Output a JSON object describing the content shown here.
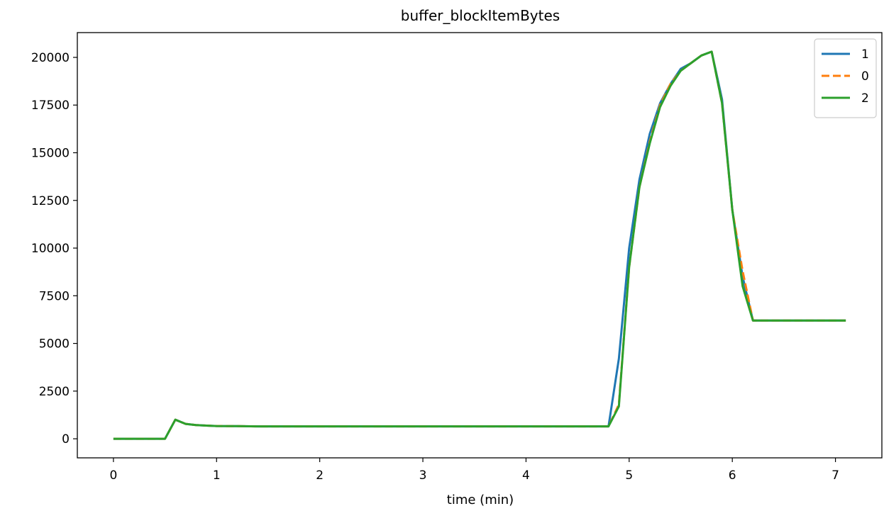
{
  "chart_data": {
    "type": "line",
    "title": "buffer_blockItemBytes",
    "xlabel": "time (min)",
    "ylabel": "",
    "xlim": [
      -0.35,
      7.45
    ],
    "ylim": [
      -1000,
      21300
    ],
    "xticks": [
      0,
      1,
      2,
      3,
      4,
      5,
      6,
      7
    ],
    "yticks": [
      0,
      2500,
      5000,
      7500,
      10000,
      12500,
      15000,
      17500,
      20000
    ],
    "grid": false,
    "legend_position": "top-right",
    "series": [
      {
        "name": "1",
        "color": "#1f77b4",
        "dash": "solid",
        "x": [
          0,
          0.1,
          0.2,
          0.3,
          0.4,
          0.5,
          0.6,
          0.7,
          0.8,
          0.9,
          1.0,
          1.2,
          1.4,
          1.6,
          1.8,
          2.0,
          2.2,
          2.4,
          2.6,
          2.8,
          3.0,
          3.2,
          3.4,
          3.6,
          3.8,
          4.0,
          4.2,
          4.4,
          4.6,
          4.8,
          4.9,
          5.0,
          5.1,
          5.2,
          5.3,
          5.4,
          5.5,
          5.6,
          5.7,
          5.8,
          5.9,
          6.0,
          6.1,
          6.2,
          6.3,
          6.5,
          6.7,
          6.9,
          7.1
        ],
        "y": [
          0,
          0,
          0,
          0,
          0,
          0,
          1000,
          780,
          720,
          690,
          670,
          660,
          650,
          650,
          650,
          650,
          650,
          650,
          650,
          650,
          650,
          650,
          650,
          650,
          650,
          650,
          650,
          650,
          650,
          650,
          4200,
          10000,
          13600,
          16000,
          17600,
          18600,
          19400,
          19700,
          20100,
          20300,
          17800,
          12000,
          8500,
          6200,
          6200,
          6200,
          6200,
          6200,
          6200
        ]
      },
      {
        "name": "0",
        "color": "#ff7f0e",
        "dash": "dashed",
        "x": [
          0,
          0.1,
          0.2,
          0.3,
          0.4,
          0.5,
          0.6,
          0.7,
          0.8,
          0.9,
          1.0,
          1.2,
          1.4,
          1.6,
          1.8,
          2.0,
          2.2,
          2.4,
          2.6,
          2.8,
          3.0,
          3.2,
          3.4,
          3.6,
          3.8,
          4.0,
          4.2,
          4.4,
          4.6,
          4.8,
          4.9,
          5.0,
          5.1,
          5.2,
          5.3,
          5.4,
          5.5,
          5.6,
          5.7,
          5.8,
          5.9,
          6.0,
          6.1,
          6.2,
          6.3,
          6.5,
          6.7,
          6.9,
          7.1
        ],
        "y": [
          0,
          0,
          0,
          0,
          0,
          0,
          1000,
          780,
          720,
          690,
          670,
          660,
          650,
          650,
          650,
          650,
          650,
          650,
          650,
          650,
          650,
          650,
          650,
          650,
          650,
          650,
          650,
          650,
          650,
          650,
          1800,
          9000,
          13200,
          15600,
          17500,
          18600,
          19300,
          19700,
          20100,
          20300,
          17600,
          12000,
          8800,
          6200,
          6200,
          6200,
          6200,
          6200,
          6200
        ]
      },
      {
        "name": "2",
        "color": "#2ca02c",
        "dash": "solid",
        "x": [
          0,
          0.1,
          0.2,
          0.3,
          0.4,
          0.5,
          0.6,
          0.7,
          0.8,
          0.9,
          1.0,
          1.2,
          1.4,
          1.6,
          1.8,
          2.0,
          2.2,
          2.4,
          2.6,
          2.8,
          3.0,
          3.2,
          3.4,
          3.6,
          3.8,
          4.0,
          4.2,
          4.4,
          4.6,
          4.8,
          4.9,
          5.0,
          5.1,
          5.2,
          5.3,
          5.4,
          5.5,
          5.6,
          5.7,
          5.8,
          5.9,
          6.0,
          6.1,
          6.2,
          6.3,
          6.5,
          6.7,
          6.9,
          7.1
        ],
        "y": [
          0,
          0,
          0,
          0,
          0,
          0,
          1000,
          780,
          720,
          690,
          670,
          660,
          650,
          650,
          650,
          650,
          650,
          650,
          650,
          650,
          650,
          650,
          650,
          650,
          650,
          650,
          650,
          650,
          650,
          650,
          1700,
          9000,
          13200,
          15500,
          17400,
          18500,
          19300,
          19700,
          20100,
          20300,
          17600,
          12000,
          8000,
          6200,
          6200,
          6200,
          6200,
          6200,
          6200
        ]
      }
    ]
  }
}
